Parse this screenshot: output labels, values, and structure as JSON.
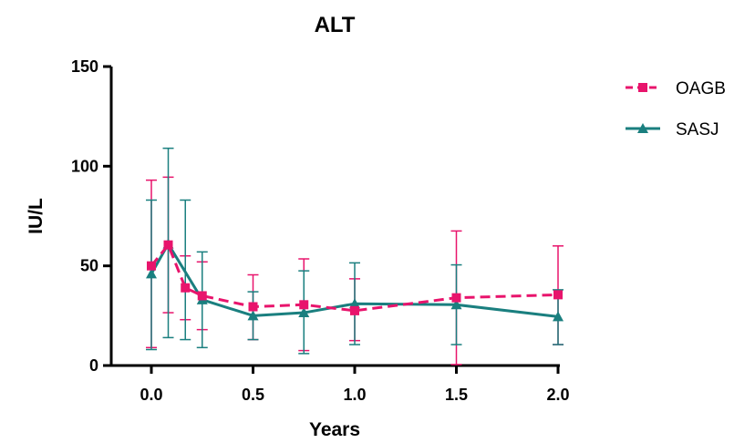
{
  "chart_data": {
    "type": "line",
    "title": "ALT",
    "xlabel": "Years",
    "ylabel": "IU/L",
    "xlim": [
      -0.2,
      2.0
    ],
    "ylim": [
      0,
      150
    ],
    "xticks": [
      "0.0",
      "0.5",
      "1.0",
      "1.5",
      "2.0"
    ],
    "yticks": [
      "0",
      "50",
      "100",
      "150"
    ],
    "legend": "top-right",
    "series": [
      {
        "name": "OAGB",
        "color": "#e8146c",
        "line_style": "dashed",
        "marker": "square",
        "x": [
          0,
          0.083,
          0.167,
          0.25,
          0.5,
          0.75,
          1.0,
          1.5,
          2.0
        ],
        "y": [
          50,
          60.5,
          39,
          35,
          29.5,
          30.5,
          27.5,
          34,
          35.5
        ],
        "err_low": [
          9,
          26.5,
          23,
          18,
          13,
          7.5,
          12.5,
          0.5,
          10.5
        ],
        "err_high": [
          93,
          94.5,
          55,
          52,
          45.5,
          53.5,
          43.5,
          67.5,
          60
        ]
      },
      {
        "name": "SASJ",
        "color": "#1a7f7f",
        "line_style": "solid",
        "marker": "triangle",
        "x": [
          0,
          0.083,
          0.25,
          0.5,
          0.75,
          1.0,
          1.5,
          2.0
        ],
        "y": [
          46,
          61,
          33,
          25,
          26.5,
          31,
          30.5,
          24.5
        ],
        "err_low": [
          8,
          14,
          9,
          13,
          6,
          10.5,
          10.5,
          10.5
        ],
        "err_high": [
          83,
          109,
          57,
          37,
          47.5,
          51.5,
          50.5,
          38
        ]
      }
    ],
    "extra_errorbars": [
      {
        "series": "SASJ",
        "x": 0.167,
        "err_low": 13,
        "err_high": 83
      }
    ]
  }
}
